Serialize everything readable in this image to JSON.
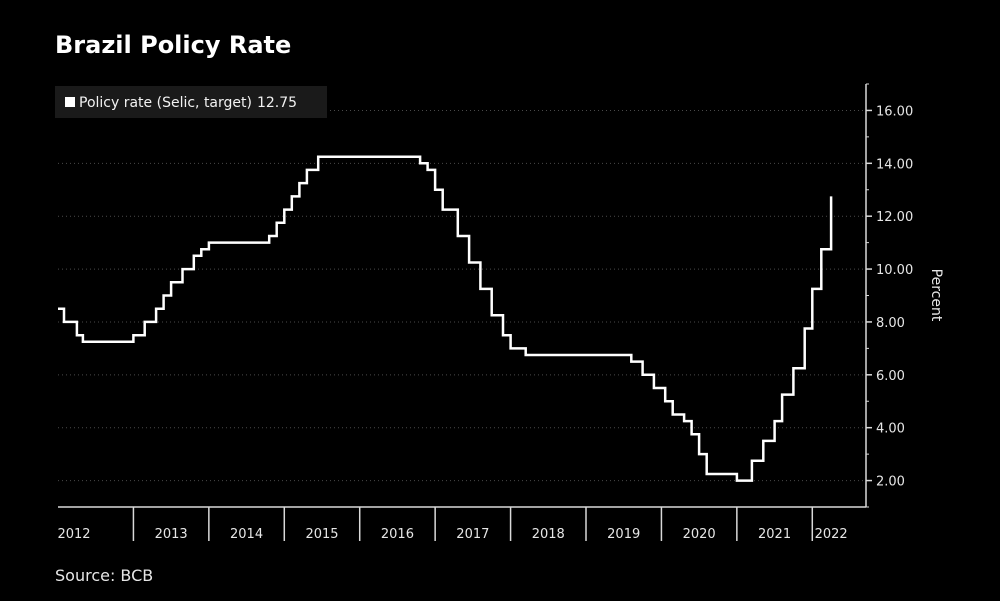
{
  "chart_data": {
    "type": "line",
    "title": "Brazil Policy Rate",
    "ylabel": "Percent",
    "xlabel": "",
    "ylim": [
      1.0,
      17.0
    ],
    "yticks": [
      2,
      4,
      6,
      8,
      10,
      12,
      14,
      16
    ],
    "ytick_labels": [
      "2.00",
      "4.00",
      "6.00",
      "8.00",
      "10.00",
      "12.00",
      "14.00",
      "16.00"
    ],
    "xlim": [
      2012.0,
      2022.5
    ],
    "year_labels": [
      "2012",
      "2013",
      "2014",
      "2015",
      "2016",
      "2017",
      "2018",
      "2019",
      "2020",
      "2021",
      "2022"
    ],
    "grid": true,
    "legend_position": "top-left",
    "series": [
      {
        "name": "Policy rate (Selic, target)",
        "latest_label": "12.75",
        "color": "#ffffff",
        "step": true,
        "x": [
          2012.0,
          2012.08,
          2012.25,
          2012.33,
          2012.5,
          2012.67,
          2012.83,
          2013.0,
          2013.15,
          2013.3,
          2013.4,
          2013.5,
          2013.65,
          2013.8,
          2013.9,
          2014.0,
          2014.1,
          2014.2,
          2014.3,
          2014.8,
          2014.9,
          2015.0,
          2015.1,
          2015.2,
          2015.3,
          2015.45,
          2015.55,
          2016.8,
          2016.9,
          2017.0,
          2017.1,
          2017.3,
          2017.45,
          2017.6,
          2017.75,
          2017.9,
          2018.0,
          2018.2,
          2019.6,
          2019.75,
          2019.9,
          2020.05,
          2020.15,
          2020.3,
          2020.4,
          2020.5,
          2020.6,
          2021.0,
          2021.2,
          2021.35,
          2021.5,
          2021.6,
          2021.75,
          2021.9,
          2022.0,
          2022.12,
          2022.25
        ],
        "values": [
          8.5,
          8.0,
          7.5,
          7.25,
          7.25,
          7.25,
          7.25,
          7.5,
          8.0,
          8.5,
          9.0,
          9.5,
          10.0,
          10.5,
          10.75,
          11.0,
          11.0,
          11.0,
          11.0,
          11.25,
          11.75,
          12.25,
          12.75,
          13.25,
          13.75,
          14.25,
          14.25,
          14.0,
          13.75,
          13.0,
          12.25,
          11.25,
          10.25,
          9.25,
          8.25,
          7.5,
          7.0,
          6.75,
          6.5,
          6.0,
          5.5,
          5.0,
          4.5,
          4.25,
          3.75,
          3.0,
          2.25,
          2.0,
          2.75,
          3.5,
          4.25,
          5.25,
          6.25,
          7.75,
          9.25,
          10.75,
          12.75
        ]
      }
    ]
  },
  "footer": {
    "source": "Source: BCB"
  }
}
